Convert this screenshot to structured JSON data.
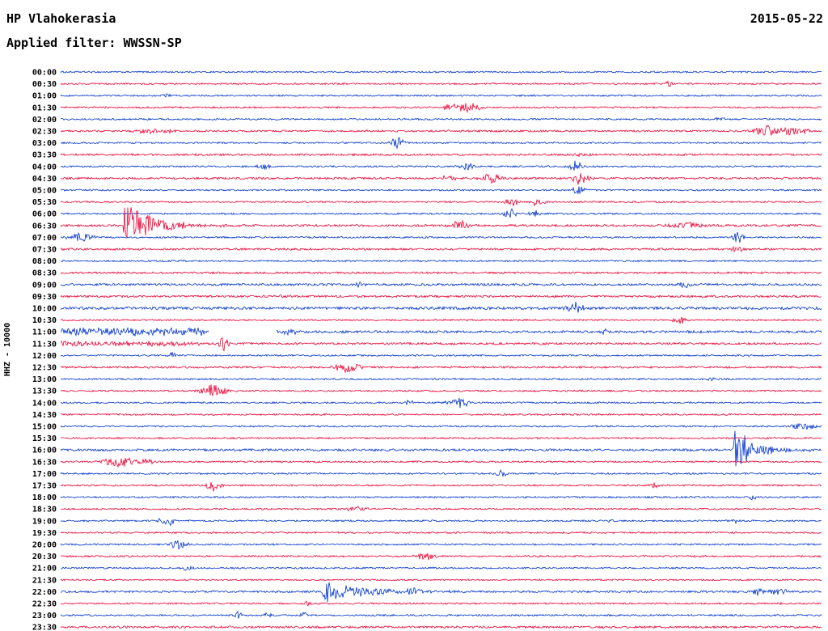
{
  "header": {
    "station_title": "HP Vlahokerasia",
    "date": "2015-05-22",
    "filter_label": "Applied filter: WWSSN-SP"
  },
  "axis": {
    "left_label": "HHZ - 10000"
  },
  "chart_data": {
    "type": "line",
    "subtype": "helicorder-seismogram-drum-plot",
    "title": "HP Vlahokerasia",
    "date": "2015-05-22",
    "filter": "WWSSN-SP",
    "channel_scale_label": "HHZ - 10000",
    "minutes_per_row": 30,
    "colors": {
      "even_row_trace": "#0033cc",
      "odd_row_trace": "#ee0033",
      "label_text": "#000000",
      "background": "#ffffff"
    },
    "rows": [
      "00:00",
      "00:30",
      "01:00",
      "01:30",
      "02:00",
      "02:30",
      "03:00",
      "03:30",
      "04:00",
      "04:30",
      "05:00",
      "05:30",
      "06:00",
      "06:30",
      "07:00",
      "07:30",
      "08:00",
      "08:30",
      "09:00",
      "09:30",
      "10:00",
      "10:30",
      "11:00",
      "11:30",
      "12:00",
      "12:30",
      "13:00",
      "13:30",
      "14:00",
      "14:30",
      "15:00",
      "15:30",
      "16:00",
      "16:30",
      "17:00",
      "17:30",
      "18:00",
      "18:30",
      "19:00",
      "19:30",
      "20:00",
      "20:30",
      "21:00",
      "21:30",
      "22:00",
      "22:30",
      "23:00",
      "23:30"
    ],
    "noise_overrides": {
      "02:30": 1.2,
      "03:30": 1.25,
      "04:30": 1.25,
      "06:30": 1.3,
      "07:30": 1.3,
      "08:30": 1.15,
      "09:00": 1.35,
      "09:30": 1.3,
      "10:00": 1.7,
      "11:00": 1.5,
      "11:30": 1.35,
      "12:30": 1.2,
      "16:00": 1.4,
      "22:00": 1.25,
      "23:30": 1.3,
      "21:30": 0.9
    },
    "gaps": {
      "11:00": [
        [
          5.85,
          8.5
        ]
      ]
    },
    "events": [
      {
        "row": "00:30",
        "type": "burst",
        "t": 24.0,
        "amp": 4,
        "w": 0.2
      },
      {
        "row": "01:00",
        "type": "burst",
        "t": 4.2,
        "amp": 2.5,
        "w": 0.2
      },
      {
        "row": "01:30",
        "type": "burst",
        "t": 15.3,
        "amp": 3,
        "w": 0.3
      },
      {
        "row": "01:30",
        "type": "burst",
        "t": 16.0,
        "amp": 6,
        "w": 0.55
      },
      {
        "row": "02:00",
        "type": "burst",
        "t": 26.0,
        "amp": 2.5,
        "w": 0.3
      },
      {
        "row": "02:30",
        "type": "burst",
        "t": 3.5,
        "amp": 3.5,
        "w": 0.4
      },
      {
        "row": "02:30",
        "type": "burst",
        "t": 4.3,
        "amp": 3,
        "w": 0.3
      },
      {
        "row": "02:30",
        "type": "burst",
        "t": 27.9,
        "amp": 7,
        "w": 0.5
      },
      {
        "row": "02:30",
        "type": "burst",
        "t": 28.8,
        "amp": 5,
        "w": 0.7
      },
      {
        "row": "03:00",
        "type": "burst",
        "t": 13.3,
        "amp": 8,
        "w": 0.25
      },
      {
        "row": "03:30",
        "type": "burst",
        "t": 20.5,
        "amp": 3,
        "w": 0.2
      },
      {
        "row": "04:00",
        "type": "burst",
        "t": 8.0,
        "amp": 3,
        "w": 0.3
      },
      {
        "row": "04:00",
        "type": "burst",
        "t": 16.0,
        "amp": 5,
        "w": 0.3
      },
      {
        "row": "04:00",
        "type": "burst",
        "t": 20.3,
        "amp": 7,
        "w": 0.25
      },
      {
        "row": "04:30",
        "type": "burst",
        "t": 15.3,
        "amp": 3,
        "w": 0.3
      },
      {
        "row": "04:30",
        "type": "burst",
        "t": 17.0,
        "amp": 6,
        "w": 0.4
      },
      {
        "row": "04:30",
        "type": "burst",
        "t": 20.5,
        "amp": 8,
        "w": 0.3
      },
      {
        "row": "05:00",
        "type": "burst",
        "t": 20.4,
        "amp": 6,
        "w": 0.25
      },
      {
        "row": "05:30",
        "type": "burst",
        "t": 17.8,
        "amp": 5,
        "w": 0.3
      },
      {
        "row": "05:30",
        "type": "burst",
        "t": 18.8,
        "amp": 4.5,
        "w": 0.3
      },
      {
        "row": "06:00",
        "type": "burst",
        "t": 17.7,
        "amp": 9,
        "w": 0.2
      },
      {
        "row": "06:00",
        "type": "burst",
        "t": 18.7,
        "amp": 4,
        "w": 0.25
      },
      {
        "row": "06:30",
        "type": "quake",
        "t": 2.55,
        "amp": 28,
        "tail": 1.1
      },
      {
        "row": "06:30",
        "type": "burst",
        "t": 15.7,
        "amp": 6,
        "w": 0.4
      },
      {
        "row": "06:30",
        "type": "burst",
        "t": 24.6,
        "amp": 4,
        "w": 0.8
      },
      {
        "row": "07:00",
        "type": "burst",
        "t": 0.8,
        "amp": 6,
        "w": 0.45
      },
      {
        "row": "07:00",
        "type": "burst",
        "t": 26.7,
        "amp": 8,
        "w": 0.2
      },
      {
        "row": "07:30",
        "type": "burst",
        "t": 26.7,
        "amp": 4,
        "w": 0.25
      },
      {
        "row": "09:00",
        "type": "burst",
        "t": 11.8,
        "amp": 3,
        "w": 0.2
      },
      {
        "row": "09:00",
        "type": "burst",
        "t": 24.6,
        "amp": 4,
        "w": 0.2
      },
      {
        "row": "09:30",
        "type": "burst",
        "t": 8.8,
        "amp": 3,
        "w": 0.25
      },
      {
        "row": "10:00",
        "type": "burst",
        "t": 20.3,
        "amp": 7,
        "w": 0.35
      },
      {
        "row": "10:30",
        "type": "burst",
        "t": 24.4,
        "amp": 5,
        "w": 0.25
      },
      {
        "row": "11:00",
        "type": "band",
        "t": 0,
        "t2": 5.7,
        "amp": 4.5
      },
      {
        "row": "11:00",
        "type": "burst",
        "t": 8.9,
        "amp": 3,
        "w": 0.5
      },
      {
        "row": "11:00",
        "type": "burst",
        "t": 21.5,
        "amp": 3,
        "w": 0.25
      },
      {
        "row": "11:30",
        "type": "band",
        "t": 0,
        "t2": 5.5,
        "amp": 2.2
      },
      {
        "row": "11:30",
        "type": "burst",
        "t": 6.45,
        "amp": 10,
        "w": 0.2
      },
      {
        "row": "12:00",
        "type": "burst",
        "t": 4.4,
        "amp": 5,
        "w": 0.15
      },
      {
        "row": "12:30",
        "type": "burst",
        "t": 11.3,
        "amp": 7,
        "w": 0.45
      },
      {
        "row": "13:00",
        "type": "burst",
        "t": 25.7,
        "amp": 3,
        "w": 0.2
      },
      {
        "row": "13:30",
        "type": "burst",
        "t": 6.0,
        "amp": 8,
        "w": 0.5
      },
      {
        "row": "14:00",
        "type": "burst",
        "t": 13.7,
        "amp": 3,
        "w": 0.2
      },
      {
        "row": "14:00",
        "type": "burst",
        "t": 15.7,
        "amp": 6,
        "w": 0.45
      },
      {
        "row": "15:00",
        "type": "burst",
        "t": 29.3,
        "amp": 4,
        "w": 0.5
      },
      {
        "row": "16:00",
        "type": "quake",
        "t": 26.6,
        "amp": 26,
        "tail": 0.85
      },
      {
        "row": "16:30",
        "type": "burst",
        "t": 2.3,
        "amp": 7,
        "w": 0.6
      },
      {
        "row": "16:30",
        "type": "burst",
        "t": 3.4,
        "amp": 4,
        "w": 0.3
      },
      {
        "row": "17:00",
        "type": "burst",
        "t": 17.4,
        "amp": 5,
        "w": 0.2
      },
      {
        "row": "17:30",
        "type": "burst",
        "t": 6.0,
        "amp": 7,
        "w": 0.3
      },
      {
        "row": "17:30",
        "type": "burst",
        "t": 23.4,
        "amp": 3,
        "w": 0.2
      },
      {
        "row": "18:00",
        "type": "burst",
        "t": 27.3,
        "amp": 3,
        "w": 0.15
      },
      {
        "row": "18:30",
        "type": "burst",
        "t": 11.7,
        "amp": 4,
        "w": 0.35
      },
      {
        "row": "19:00",
        "type": "burst",
        "t": 4.2,
        "amp": 7,
        "w": 0.3
      },
      {
        "row": "19:00",
        "type": "burst",
        "t": 21.7,
        "amp": 3,
        "w": 0.15
      },
      {
        "row": "19:00",
        "type": "burst",
        "t": 26.6,
        "amp": 3,
        "w": 0.15
      },
      {
        "row": "20:00",
        "type": "burst",
        "t": 4.6,
        "amp": 6,
        "w": 0.35
      },
      {
        "row": "20:30",
        "type": "burst",
        "t": 14.4,
        "amp": 5,
        "w": 0.35
      },
      {
        "row": "21:00",
        "type": "burst",
        "t": 5.0,
        "amp": 3,
        "w": 0.2
      },
      {
        "row": "22:00",
        "type": "quake",
        "t": 10.4,
        "amp": 13,
        "tail": 1.6
      },
      {
        "row": "22:00",
        "type": "burst",
        "t": 13.9,
        "amp": 5,
        "w": 0.3
      },
      {
        "row": "22:00",
        "type": "burst",
        "t": 27.5,
        "amp": 5,
        "w": 0.2
      },
      {
        "row": "22:00",
        "type": "band",
        "t": 27.9,
        "t2": 28.6,
        "amp": 3.5
      },
      {
        "row": "22:30",
        "type": "burst",
        "t": 9.7,
        "amp": 3,
        "w": 0.2
      },
      {
        "row": "22:30",
        "type": "burst",
        "t": 28.4,
        "amp": 3,
        "w": 0.2
      },
      {
        "row": "23:00",
        "type": "burst",
        "t": 7.0,
        "amp": 7,
        "w": 0.12
      },
      {
        "row": "23:00",
        "type": "burst",
        "t": 8.15,
        "amp": 8,
        "w": 0.12
      },
      {
        "row": "23:00",
        "type": "burst",
        "t": 9.6,
        "amp": 3,
        "w": 0.15
      }
    ]
  }
}
